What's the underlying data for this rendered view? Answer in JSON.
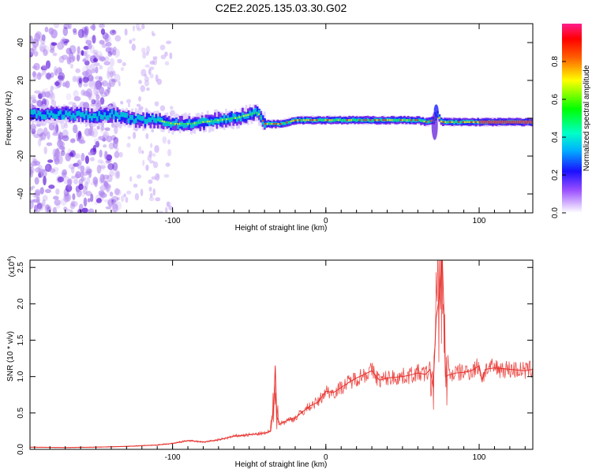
{
  "title": "C2E2.2025.135.03.30.G02",
  "chart_data": [
    {
      "type": "heatmap",
      "xlabel": "Height of straight line (km)",
      "ylabel": "Frequency (Hz)",
      "xlim": [
        -193,
        135
      ],
      "ylim": [
        -50,
        50
      ],
      "xticks": [
        "-100",
        "0",
        "100"
      ],
      "yticks": [
        "-40",
        "-20",
        "0",
        "20",
        "40"
      ],
      "colorbar": {
        "label": "Normalized spectral amplitude",
        "range": [
          0,
          1
        ],
        "ticks": [
          "0.0",
          "0.2",
          "0.4",
          "0.6",
          "0.8"
        ]
      },
      "ridge": {
        "x": [
          -193,
          -170,
          -150,
          -140,
          -130,
          -120,
          -110,
          -100,
          -90,
          -80,
          -70,
          -60,
          -50,
          -45,
          -40,
          -35,
          -30,
          -20,
          -10,
          0,
          10,
          20,
          30,
          40,
          50,
          60,
          65,
          70,
          72,
          75,
          80,
          90,
          100,
          110,
          120,
          135
        ],
        "y": [
          2,
          2,
          1,
          2,
          0,
          -1,
          -1,
          -3,
          -3,
          -2,
          -1,
          0,
          2,
          3,
          -3,
          -3,
          -3,
          -1,
          -1,
          -1,
          -1,
          -1,
          -1,
          -1,
          -1,
          -1,
          -2,
          -1,
          2,
          -2,
          -2,
          -2,
          -2,
          -2,
          -2,
          -2
        ]
      }
    },
    {
      "type": "line",
      "xlabel": "Height of straight line (km)",
      "ylabel": "SNR (10 * v/v)",
      "scale_note": "(x10",
      "scale_exp": "4",
      "xlim": [
        -193,
        135
      ],
      "ylim": [
        0,
        26000
      ],
      "xticks": [
        "-100",
        "0",
        "100"
      ],
      "yticks": [
        "0.0",
        "0.5",
        "1.0",
        "1.5",
        "2.0",
        "2.5"
      ],
      "color": "#e8302c",
      "series": [
        {
          "x": [
            -193,
            -170,
            -150,
            -130,
            -110,
            -100,
            -90,
            -80,
            -70,
            -60,
            -50,
            -45,
            -40,
            -36,
            -34,
            -33,
            -32,
            -30,
            -25,
            -20,
            -15,
            -10,
            -5,
            0,
            5,
            10,
            15,
            20,
            25,
            30,
            35,
            40,
            45,
            50,
            55,
            60,
            65,
            68,
            70,
            72,
            74,
            75,
            76,
            77,
            78,
            80,
            85,
            90,
            95,
            100,
            102,
            104,
            110,
            120,
            130,
            135
          ],
          "y": [
            300,
            250,
            300,
            400,
            600,
            800,
            1200,
            1000,
            1300,
            1800,
            2000,
            2100,
            2200,
            2500,
            6000,
            11500,
            4500,
            3500,
            4000,
            4300,
            5200,
            6000,
            6500,
            8000,
            7800,
            8500,
            9200,
            9800,
            10300,
            10800,
            9500,
            9800,
            9900,
            10000,
            10200,
            10500,
            10300,
            11000,
            8500,
            18000,
            21000,
            24000,
            26000,
            19000,
            10000,
            10200,
            10500,
            10600,
            10800,
            11500,
            9500,
            11000,
            11200,
            11000,
            10800,
            11000
          ]
        }
      ]
    }
  ]
}
